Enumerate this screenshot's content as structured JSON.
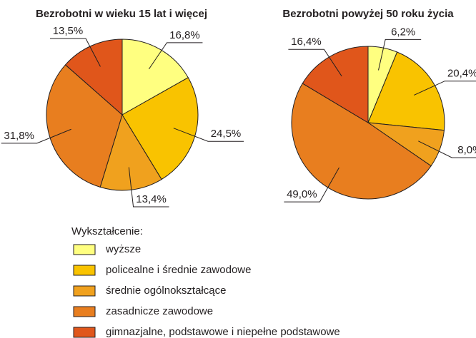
{
  "chart_data": [
    {
      "type": "pie",
      "title": "Bezrobotni w wieku 15 lat i więcej",
      "values": [
        16.8,
        24.5,
        13.4,
        31.8,
        13.5
      ],
      "value_labels": [
        "16,8%",
        "24,5%",
        "13,4%",
        "31,8%",
        "13,5%"
      ]
    },
    {
      "type": "pie",
      "title": "Bezrobotni powyżej 50 roku życia",
      "values": [
        6.2,
        20.4,
        8.0,
        49.0,
        16.4
      ],
      "value_labels": [
        "6,2%",
        "20,4%",
        "8,0%",
        "49,0%",
        "16,4%"
      ]
    }
  ],
  "legend": {
    "title": "Wykształcenie:",
    "categories": [
      "wyższe",
      "policealne i średnie zawodowe",
      "średnie ogólnokształcące",
      "zasadnicze zawodowe",
      "gimnazjalne, podstawowe i niepełne podstawowe"
    ],
    "colors": [
      "#ffff80",
      "#f9c300",
      "#f0a11e",
      "#e87e1f",
      "#e0561b"
    ]
  }
}
